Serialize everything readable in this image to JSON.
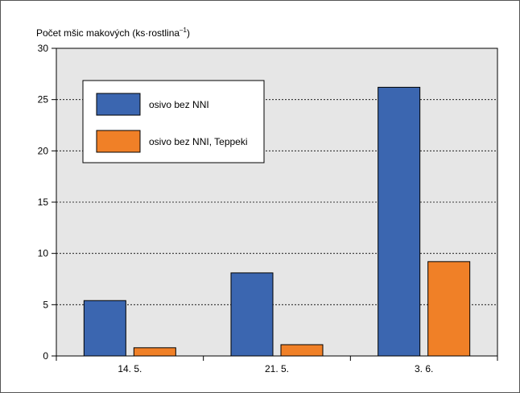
{
  "chart_data": {
    "type": "bar",
    "ylabel_main": "Počet mšic makových (ks·rostlina",
    "ylabel_sup": "–1",
    "ylabel_tail": ")",
    "categories": [
      "14. 5.",
      "21. 5.",
      "3. 6."
    ],
    "series": [
      {
        "name": "osivo bez NNI",
        "values": [
          5.4,
          8.1,
          26.2
        ],
        "color": "#3b66b0"
      },
      {
        "name": "osivo bez NNI, Teppeki",
        "values": [
          0.8,
          1.1,
          9.2
        ],
        "color": "#f08027"
      }
    ],
    "ylim": [
      0,
      30
    ],
    "yticks": [
      0,
      5,
      10,
      15,
      20,
      25,
      30
    ],
    "grid": true,
    "legend_position": "top-left",
    "plot_background": "#e6e6e6"
  }
}
